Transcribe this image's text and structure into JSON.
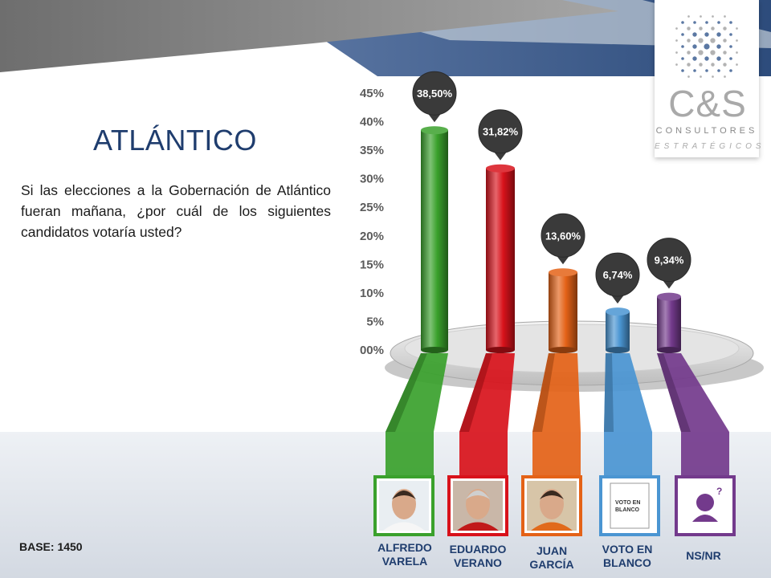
{
  "title": "ATLÁNTICO",
  "question": "Si las elecciones a la Gobernación de Atlántico fueran mañana, ¿por cuál de los siguientes candidatos votaría usted?",
  "base": "BASE: 1450",
  "logo": {
    "main": "C&S",
    "line1": "CONSULTORES",
    "line2": "ESTRATÉGICOS"
  },
  "candidates": [
    {
      "line1": "ALFREDO",
      "line2": "VARELA"
    },
    {
      "line1": "EDUARDO",
      "line2": "VERANO"
    },
    {
      "line1": "JUAN",
      "line2": "GARCÍA"
    },
    {
      "line1": "VOTO EN",
      "line2": "BLANCO"
    },
    {
      "line1": "NS/NR",
      "line2": ""
    }
  ],
  "blank_card": {
    "line1": "VOTO EN",
    "line2": "BLANCO"
  },
  "chart_data": {
    "type": "bar",
    "categories": [
      "ALFREDO VARELA",
      "EDUARDO VERANO",
      "JUAN GARCÍA",
      "VOTO EN BLANCO",
      "NS/NR"
    ],
    "values": [
      38.5,
      31.82,
      13.6,
      6.74,
      9.34
    ],
    "data_labels": [
      "38,50%",
      "31,82%",
      "13,60%",
      "6,74%",
      "9,34%"
    ],
    "colors": [
      "#3aa12c",
      "#d8121b",
      "#e46217",
      "#4a95d2",
      "#733a8c"
    ],
    "ylim": [
      0,
      45
    ],
    "y_ticks": [
      0,
      5,
      10,
      15,
      20,
      25,
      30,
      35,
      40,
      45
    ],
    "y_tick_labels": [
      "00%",
      "5%",
      "10%",
      "15%",
      "20%",
      "25%",
      "30%",
      "35%",
      "40%",
      "45%"
    ],
    "grid": false,
    "legend": "none"
  }
}
